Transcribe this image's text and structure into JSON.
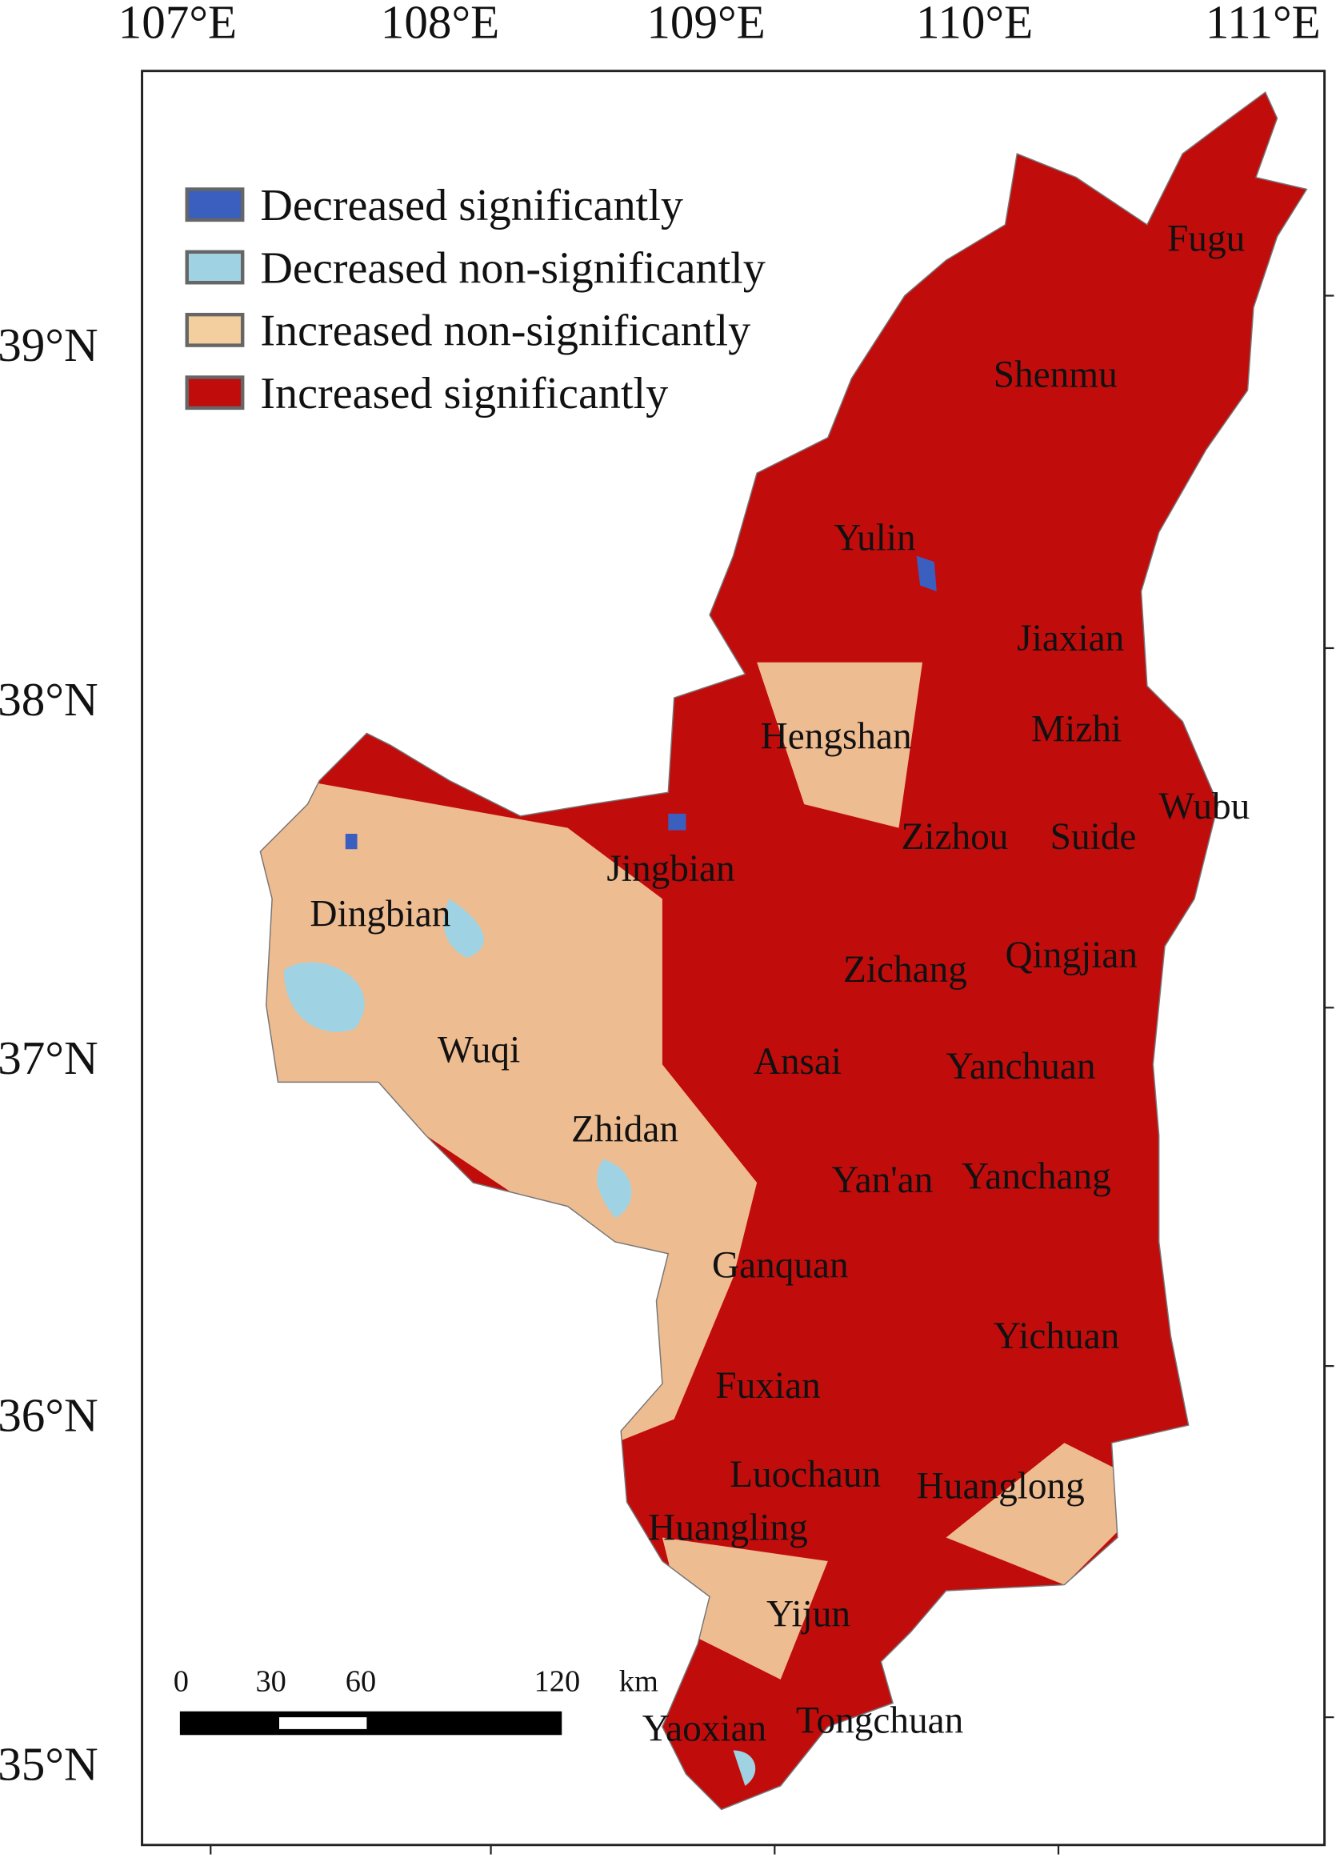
{
  "longitude_labels": [
    "107°E",
    "108°E",
    "109°E",
    "110°E",
    "111°E"
  ],
  "latitude_labels": [
    "39°N",
    "38°N",
    "37°N",
    "36°N",
    "35°N"
  ],
  "legend": [
    {
      "label": "Decreased significantly",
      "color": "#3a5fbf"
    },
    {
      "label": "Decreased non-significantly",
      "color": "#9fd3e3"
    },
    {
      "label": "Increased non-significantly",
      "color": "#f3cfa0"
    },
    {
      "label": "Increased significantly",
      "color": "#c10c0c"
    }
  ],
  "cities": [
    "Fugu",
    "Shenmu",
    "Yulin",
    "Jiaxian",
    "Hengshan",
    "Mizhi",
    "Wubu",
    "Zizhou",
    "Suide",
    "Jingbian",
    "Dingbian",
    "Zichang",
    "Qingjian",
    "Wuqi",
    "Ansai",
    "Yanchuan",
    "Zhidan",
    "Yan'an",
    "Yanchang",
    "Ganquan",
    "Yichuan",
    "Fuxian",
    "Luochaun",
    "Huanglong",
    "Huangling",
    "Yijun",
    "Yaoxian",
    "Tongchuan"
  ],
  "scale_bar": {
    "labels": [
      "0",
      "30",
      "60",
      "120"
    ],
    "unit": "km"
  }
}
